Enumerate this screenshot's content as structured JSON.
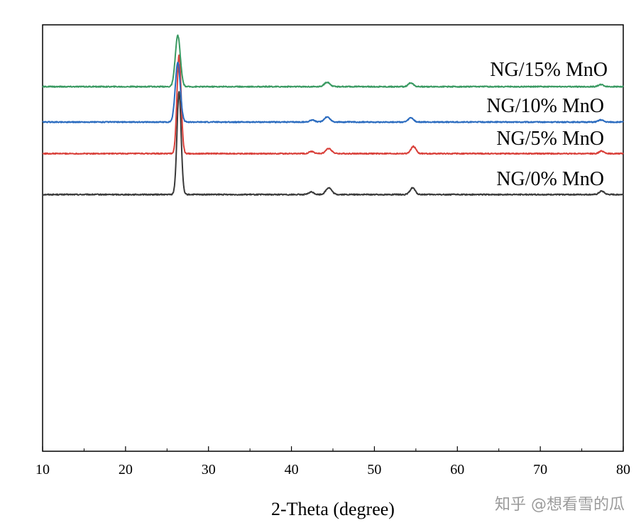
{
  "chart_data": {
    "type": "line",
    "title": "",
    "xlabel": "2-Theta (degree)",
    "ylabel": "",
    "xlim": [
      10,
      80
    ],
    "ylim": [
      0,
      100
    ],
    "xticks": [
      10,
      20,
      30,
      40,
      50,
      60,
      70,
      80
    ],
    "show_yticks": false,
    "grid": false,
    "legend_placement": "inline-right",
    "series": [
      {
        "name": "NG/0% MnO",
        "color": "#3a3a3a",
        "baseline": 60.2,
        "peaks": [
          [
            26.45,
            24,
            0.25
          ],
          [
            42.4,
            0.6,
            0.3
          ],
          [
            44.5,
            1.6,
            0.35
          ],
          [
            54.6,
            1.6,
            0.3
          ],
          [
            77.4,
            0.8,
            0.3
          ]
        ]
      },
      {
        "name": "NG/5% MnO",
        "color": "#d9403a",
        "baseline": 69.8,
        "peaks": [
          [
            26.45,
            23,
            0.25
          ],
          [
            42.4,
            0.5,
            0.3
          ],
          [
            44.5,
            1.2,
            0.35
          ],
          [
            54.7,
            1.7,
            0.3
          ],
          [
            77.4,
            0.6,
            0.3
          ]
        ]
      },
      {
        "name": "NG/10% MnO",
        "color": "#2a6bbf",
        "baseline": 77.2,
        "peaks": [
          [
            26.3,
            14,
            0.3
          ],
          [
            42.5,
            0.5,
            0.3
          ],
          [
            44.3,
            1.2,
            0.35
          ],
          [
            54.4,
            1.0,
            0.3
          ],
          [
            77.3,
            0.5,
            0.3
          ]
        ]
      },
      {
        "name": "NG/15% MnO",
        "color": "#3a9a62",
        "baseline": 85.5,
        "peaks": [
          [
            26.3,
            12,
            0.3
          ],
          [
            44.3,
            1.0,
            0.35
          ],
          [
            54.4,
            0.9,
            0.3
          ],
          [
            77.3,
            0.5,
            0.3
          ]
        ]
      }
    ]
  },
  "watermark": {
    "text": "知乎 @想看雪的瓜"
  }
}
